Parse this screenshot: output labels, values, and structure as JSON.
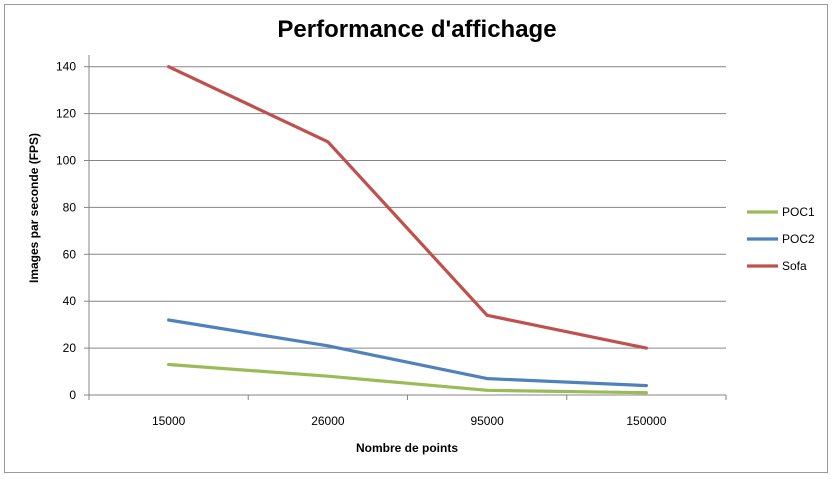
{
  "chart_data": {
    "type": "line",
    "title": "Performance d'affichage",
    "xlabel": "Nombre de points",
    "ylabel": "Images par seconde (FPS)",
    "categories": [
      "15000",
      "26000",
      "95000",
      "150000"
    ],
    "yticks": [
      0,
      20,
      40,
      60,
      80,
      100,
      120,
      140
    ],
    "ylim": [
      0,
      145
    ],
    "grid": true,
    "legend_position": "right",
    "series": [
      {
        "name": "POC1",
        "color": "#9BBB59",
        "values": [
          13,
          8,
          2,
          1
        ]
      },
      {
        "name": "POC2",
        "color": "#4F81BD",
        "values": [
          32,
          21,
          7,
          4
        ]
      },
      {
        "name": "Sofa",
        "color": "#C0504D",
        "values": [
          140,
          108,
          34,
          20
        ]
      }
    ]
  }
}
